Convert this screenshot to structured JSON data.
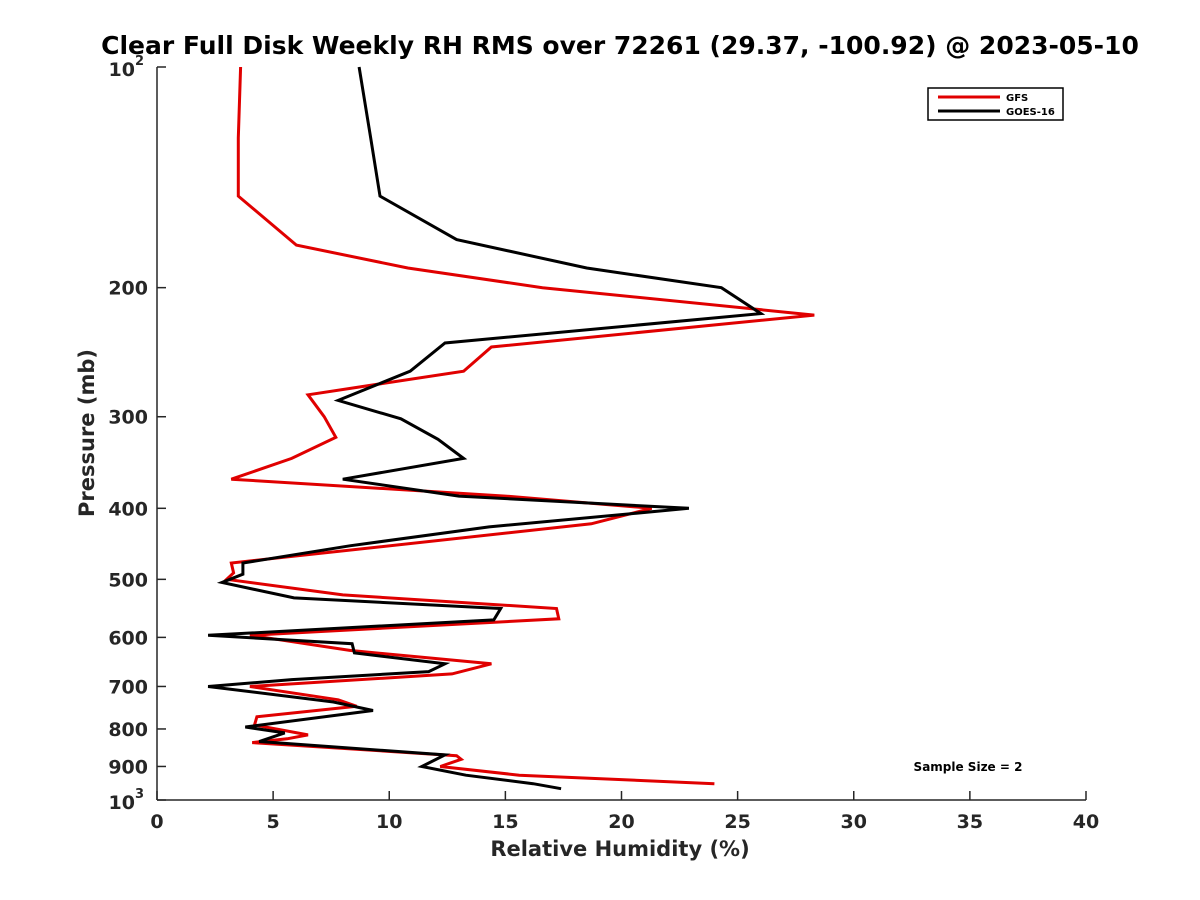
{
  "chart_data": {
    "type": "line",
    "title": "Clear Full Disk Weekly RH RMS over 72261 (29.37, -100.92) @ 2023-05-10",
    "xlabel": "Relative Humidity (%)",
    "ylabel": "Pressure (mb)",
    "xlim": [
      0,
      40
    ],
    "ylim": [
      100,
      1000
    ],
    "y_scale": "log",
    "y_reversed": true,
    "x_ticks": [
      "0",
      "5",
      "10",
      "15",
      "20",
      "25",
      "30",
      "35",
      "40"
    ],
    "y_ticks": [
      {
        "value": 100,
        "base": "10",
        "exp": "2"
      },
      {
        "value": 200,
        "label": "200"
      },
      {
        "value": 300,
        "label": "300"
      },
      {
        "value": 400,
        "label": "400"
      },
      {
        "value": 500,
        "label": "500"
      },
      {
        "value": 600,
        "label": "600"
      },
      {
        "value": 700,
        "label": "700"
      },
      {
        "value": 800,
        "label": "800"
      },
      {
        "value": 900,
        "label": "900"
      },
      {
        "value": 1000,
        "base": "10",
        "exp": "3"
      }
    ],
    "grid": false,
    "legend_position": "top-right",
    "annotation": "Sample Size = 2",
    "series": [
      {
        "name": "GFS",
        "color": "#e00000",
        "points": [
          [
            3.6,
            100
          ],
          [
            3.5,
            125
          ],
          [
            3.5,
            150
          ],
          [
            6.0,
            175
          ],
          [
            10.8,
            188
          ],
          [
            16.6,
            200
          ],
          [
            28.3,
            218
          ],
          [
            14.4,
            241
          ],
          [
            13.2,
            260
          ],
          [
            6.5,
            280
          ],
          [
            7.2,
            300
          ],
          [
            7.7,
            320
          ],
          [
            5.8,
            342
          ],
          [
            3.2,
            365
          ],
          [
            15.0,
            385
          ],
          [
            21.3,
            400
          ],
          [
            18.7,
            420
          ],
          [
            3.2,
            475
          ],
          [
            3.3,
            490
          ],
          [
            3.0,
            500
          ],
          [
            8.0,
            525
          ],
          [
            17.2,
            548
          ],
          [
            17.3,
            566
          ],
          [
            4.0,
            596
          ],
          [
            8.3,
            625
          ],
          [
            14.4,
            652
          ],
          [
            12.7,
            673
          ],
          [
            4.0,
            700
          ],
          [
            7.8,
            730
          ],
          [
            8.6,
            745
          ],
          [
            4.3,
            770
          ],
          [
            4.2,
            790
          ],
          [
            6.5,
            815
          ],
          [
            5.6,
            825
          ],
          [
            4.1,
            835
          ],
          [
            12.9,
            870
          ],
          [
            13.1,
            880
          ],
          [
            12.2,
            900
          ],
          [
            15.6,
            925
          ],
          [
            24.0,
            950
          ]
        ]
      },
      {
        "name": "GOES-16",
        "color": "#000000",
        "points": [
          [
            8.7,
            100
          ],
          [
            9.2,
            125
          ],
          [
            9.6,
            150
          ],
          [
            12.9,
            172
          ],
          [
            18.5,
            188
          ],
          [
            24.3,
            200
          ],
          [
            26.0,
            217
          ],
          [
            12.4,
            238
          ],
          [
            10.9,
            260
          ],
          [
            7.8,
            285
          ],
          [
            10.5,
            302
          ],
          [
            12.1,
            322
          ],
          [
            13.2,
            342
          ],
          [
            8.0,
            365
          ],
          [
            13.0,
            385
          ],
          [
            22.9,
            400
          ],
          [
            14.3,
            424
          ],
          [
            8.3,
            450
          ],
          [
            3.7,
            475
          ],
          [
            3.7,
            492
          ],
          [
            2.8,
            505
          ],
          [
            5.9,
            530
          ],
          [
            14.8,
            548
          ],
          [
            14.5,
            568
          ],
          [
            2.2,
            596
          ],
          [
            8.4,
            612
          ],
          [
            8.5,
            630
          ],
          [
            12.4,
            652
          ],
          [
            11.7,
            668
          ],
          [
            5.8,
            685
          ],
          [
            2.2,
            700
          ],
          [
            7.6,
            735
          ],
          [
            9.3,
            755
          ],
          [
            3.8,
            795
          ],
          [
            5.5,
            810
          ],
          [
            4.4,
            832
          ],
          [
            12.4,
            868
          ],
          [
            11.4,
            900
          ],
          [
            13.3,
            925
          ],
          [
            16.2,
            950
          ],
          [
            17.4,
            965
          ]
        ]
      }
    ]
  }
}
